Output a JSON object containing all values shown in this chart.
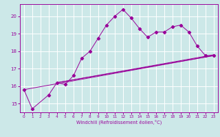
{
  "xlabel": "Windchill (Refroidissement éolien,°C)",
  "background_color": "#cce8e8",
  "grid_color": "#ffffff",
  "line_color": "#990099",
  "xlim": [
    -0.5,
    23.5
  ],
  "ylim": [
    14.5,
    20.7
  ],
  "xticks": [
    0,
    1,
    2,
    3,
    4,
    5,
    6,
    7,
    8,
    9,
    10,
    11,
    12,
    13,
    14,
    15,
    16,
    17,
    18,
    19,
    20,
    21,
    22,
    23
  ],
  "yticks": [
    15,
    16,
    17,
    18,
    19,
    20
  ],
  "main_x": [
    0,
    1,
    3,
    4,
    5,
    6,
    7,
    8,
    9,
    10,
    11,
    12,
    13,
    14,
    15,
    16,
    17,
    18,
    19,
    20,
    21,
    22,
    23
  ],
  "main_y": [
    15.8,
    14.7,
    15.5,
    16.2,
    16.1,
    16.6,
    17.6,
    18.0,
    18.75,
    19.5,
    20.0,
    20.4,
    19.9,
    19.3,
    18.8,
    19.1,
    19.1,
    19.4,
    19.5,
    19.1,
    18.3,
    17.75,
    17.75
  ],
  "line1": {
    "x": [
      0,
      23
    ],
    "y": [
      15.8,
      17.75
    ]
  },
  "line2": {
    "x": [
      0,
      23
    ],
    "y": [
      16.0,
      17.75
    ]
  },
  "line3": {
    "x": [
      0,
      23
    ],
    "y": [
      16.1,
      17.8
    ]
  },
  "fan_lines": [
    {
      "x0": 0,
      "y0": 15.8,
      "x1": 23,
      "y1": 17.75
    },
    {
      "x0": 4,
      "y0": 16.2,
      "x1": 23,
      "y1": 17.75
    },
    {
      "x0": 4,
      "y0": 16.2,
      "x1": 23,
      "y1": 17.8
    }
  ]
}
